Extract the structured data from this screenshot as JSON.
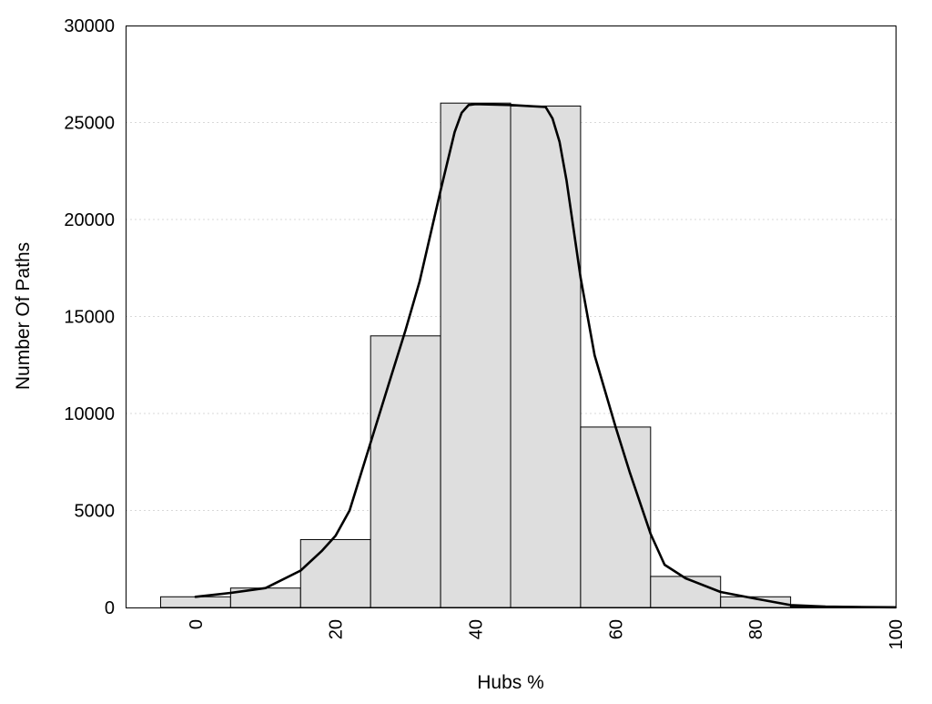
{
  "chart_data": {
    "type": "bar",
    "title": "",
    "xlabel": "Hubs %",
    "ylabel": "Number Of Paths",
    "xlim": [
      -10,
      100
    ],
    "ylim": [
      0,
      30000
    ],
    "grid": true,
    "x_ticks": [
      "0",
      "20",
      "40",
      "60",
      "80",
      "100"
    ],
    "y_ticks": [
      "0",
      "5000",
      "10000",
      "15000",
      "20000",
      "25000",
      "30000"
    ],
    "categories": [
      "0",
      "10",
      "20",
      "30",
      "40",
      "50",
      "60",
      "70",
      "80",
      "90"
    ],
    "bin_width": 10,
    "values": [
      550,
      1000,
      3500,
      14000,
      26000,
      25850,
      9300,
      1600,
      550,
      50
    ],
    "curve": {
      "type": "line",
      "x": [
        0,
        5,
        10,
        15,
        18,
        20,
        22,
        25,
        28,
        30,
        32,
        35,
        37,
        38,
        39,
        40,
        45,
        50,
        51,
        52,
        53,
        55,
        57,
        60,
        62,
        65,
        67,
        70,
        75,
        80,
        85,
        90,
        95,
        100
      ],
      "y": [
        550,
        750,
        1000,
        1900,
        2900,
        3700,
        5000,
        8500,
        12000,
        14300,
        16800,
        21500,
        24500,
        25500,
        25900,
        25950,
        25900,
        25800,
        25200,
        24000,
        22000,
        17000,
        13000,
        9300,
        7000,
        3800,
        2200,
        1500,
        800,
        450,
        120,
        40,
        20,
        10
      ]
    },
    "colors": {
      "bar_fill": "#dedede",
      "bar_stroke": "#000000",
      "curve": "#000000",
      "grid": "#d9d9d9"
    }
  }
}
